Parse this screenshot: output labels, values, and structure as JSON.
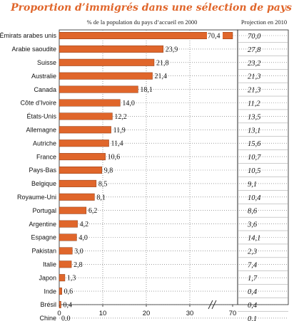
{
  "chart_data": {
    "type": "bar",
    "orientation": "horizontal",
    "title": "Proportion d’immigrés dans une sélection de pays",
    "value_header": "% de la population du pays d’accueil en 2000",
    "projection_header": "Projection en 2010",
    "categories": [
      "Émirats arabes unis",
      "Arabie saoudite",
      "Suisse",
      "Australie",
      "Canada",
      "Côte d’Ivoire",
      "États-Unis",
      "Allemagne",
      "Autriche",
      "France",
      "Pays-Bas",
      "Belgique",
      "Royaume-Uni",
      "Portugal",
      "Argentine",
      "Espagne",
      "Pakistan",
      "Italie",
      "Japon",
      "Inde",
      "Brésil",
      "Chine"
    ],
    "series": [
      {
        "values": [
          70.4,
          23.9,
          21.8,
          21.4,
          18.1,
          14.0,
          12.2,
          11.9,
          11.4,
          10.6,
          9.8,
          8.5,
          8.1,
          6.2,
          4.2,
          4.0,
          3.0,
          2.8,
          1.3,
          0.6,
          0.4,
          0.0
        ],
        "labels": [
          "70,4",
          "23,9",
          "21,8",
          "21,4",
          "18,1",
          "14,0",
          "12,2",
          "11,9",
          "11,4",
          "10,6",
          "9,8",
          "8,5",
          "8,1",
          "6,2",
          "4,2",
          "4,0",
          "3,0",
          "2,8",
          "1,3",
          "0,6",
          "0,4",
          "0,0"
        ]
      },
      {
        "labels": [
          "70,0",
          "27,8",
          "23,2",
          "21,3",
          "21,3",
          "11,2",
          "13,5",
          "13,1",
          "15,6",
          "10,7",
          "10,5",
          "9,1",
          "10,4",
          "8,6",
          "3,6",
          "14,1",
          "2,3",
          "7,4",
          "1,7",
          "0,4",
          "0,4",
          "0,1"
        ]
      }
    ],
    "x_ticks": [
      "0",
      "10",
      "20",
      "30",
      "70"
    ],
    "axis_break": [
      30,
      70
    ],
    "grid": "dotted",
    "colors": {
      "bar": "#e0662b",
      "bar_stroke": "#8a3a14",
      "title": "#e0662b"
    }
  }
}
